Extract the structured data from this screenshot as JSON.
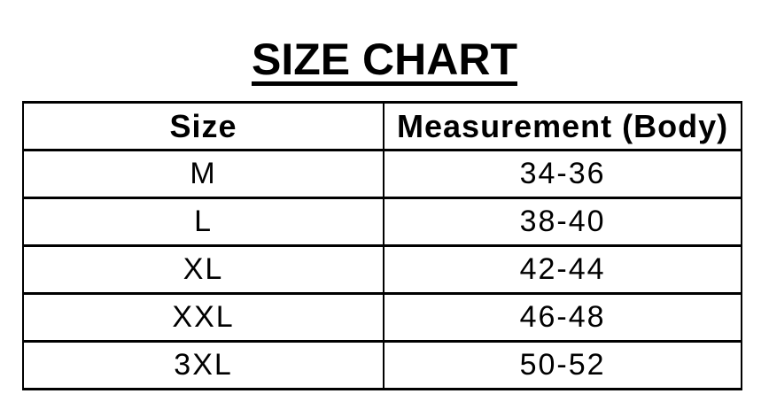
{
  "colors": {
    "background": "#ffffff",
    "text": "#000000",
    "border": "#000000"
  },
  "chart_data": {
    "type": "table",
    "title": "SIZE CHART",
    "columns": [
      "Size",
      "Measurement (Body)"
    ],
    "rows": [
      [
        "M",
        "34-36"
      ],
      [
        "L",
        "38-40"
      ],
      [
        "XL",
        "42-44"
      ],
      [
        "XXL",
        "46-48"
      ],
      [
        "3XL",
        "50-52"
      ]
    ]
  }
}
